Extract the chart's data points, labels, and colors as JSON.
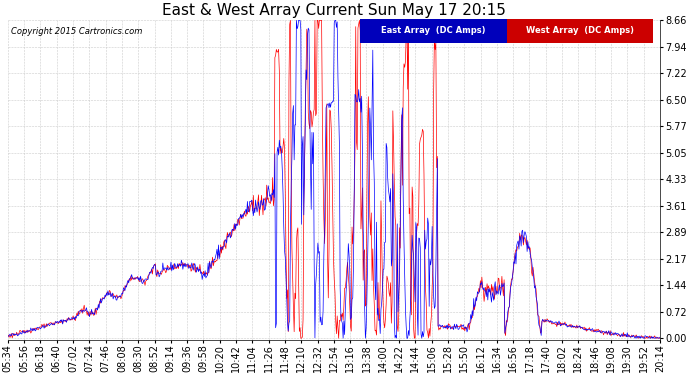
{
  "title": "East & West Array Current Sun May 17 20:15",
  "copyright": "Copyright 2015 Cartronics.com",
  "legend_east": "East Array  (DC Amps)",
  "legend_west": "West Array  (DC Amps)",
  "east_color": "#0000ff",
  "west_color": "#ff0000",
  "legend_east_bg": "#0000bb",
  "legend_west_bg": "#cc0000",
  "background_color": "#ffffff",
  "grid_color": "#cccccc",
  "yticks": [
    0.0,
    0.72,
    1.44,
    2.17,
    2.89,
    3.61,
    4.33,
    5.05,
    5.77,
    6.5,
    7.22,
    7.94,
    8.66
  ],
  "ylim": [
    -0.05,
    8.66
  ],
  "title_fontsize": 11,
  "tick_fontsize": 7
}
